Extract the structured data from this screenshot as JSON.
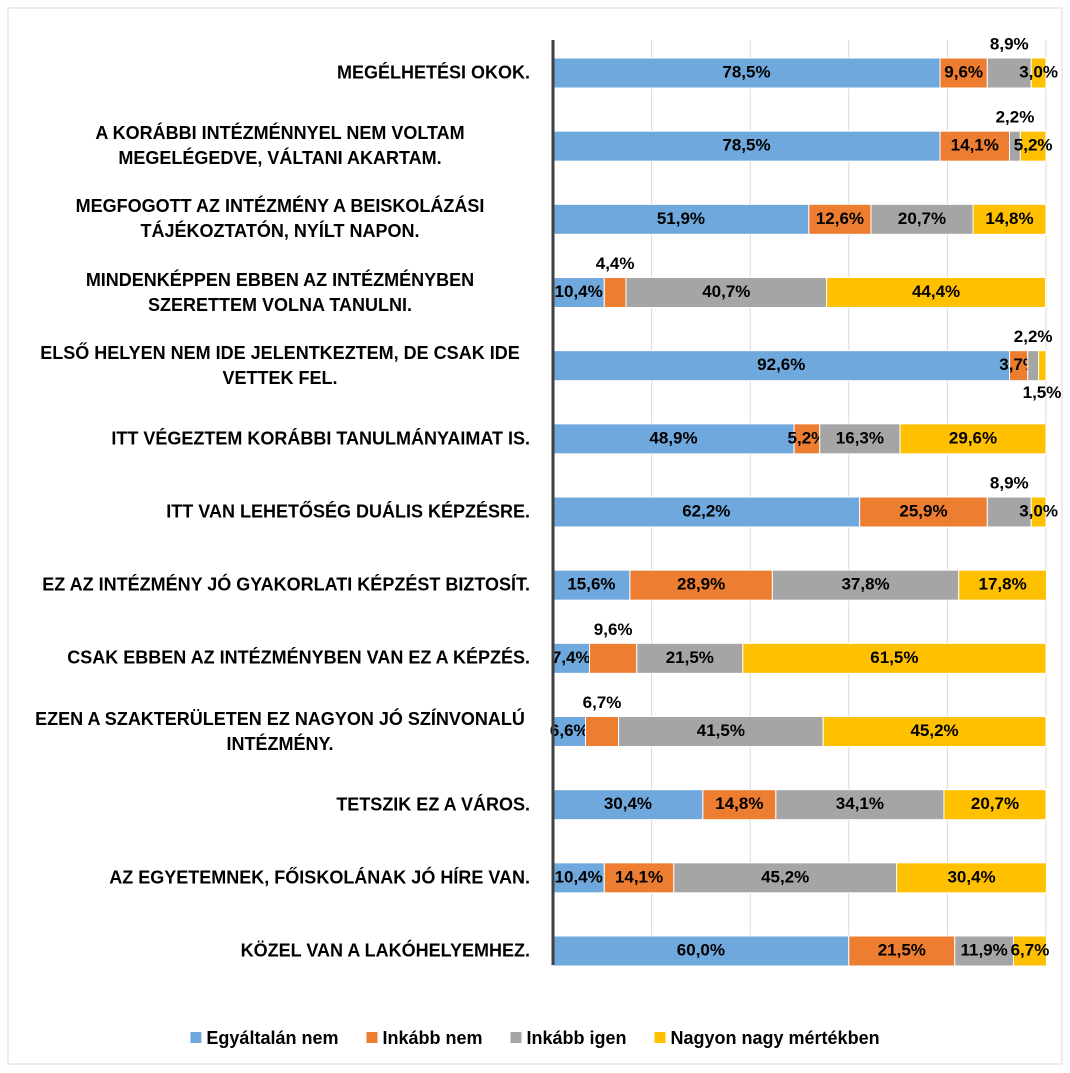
{
  "chart_data": {
    "type": "stacked-bar-horizontal",
    "categories": [
      "MEGÉLHETÉSI OKOK.",
      "A KORÁBBI INTÉZMÉNNYEL NEM VOLTAM MEGELÉGEDVE, VÁLTANI AKARTAM.",
      "MEGFOGOTT AZ INTÉZMÉNY A BEISKOLÁZÁSI TÁJÉKOZTATÓN, NYÍLT NAPON.",
      "MINDENKÉPPEN EBBEN AZ INTÉZMÉNYBEN SZERETTEM VOLNA TANULNI.",
      "ELSŐ HELYEN NEM IDE JELENTKEZTEM, DE CSAK IDE VETTEK FEL.",
      "ITT VÉGEZTEM KORÁBBI TANULMÁNYAIMAT IS.",
      "ITT VAN LEHETŐSÉG DUÁLIS KÉPZÉSRE.",
      "EZ AZ INTÉZMÉNY JÓ GYAKORLATI KÉPZÉST BIZTOSÍT.",
      "CSAK EBBEN AZ INTÉZMÉNYBEN VAN EZ A KÉPZÉS.",
      "EZEN A SZAKTERÜLETEN EZ NAGYON JÓ SZÍNVONALÚ INTÉZMÉNY.",
      "TETSZIK EZ A VÁROS.",
      "AZ EGYETEMNEK, FŐISKOLÁNAK JÓ HÍRE VAN.",
      "KÖZEL VAN A LAKÓHELYEMHEZ."
    ],
    "series": [
      {
        "name": "Egyáltalán nem",
        "color": "#6fa8dc",
        "values": [
          78.5,
          78.5,
          51.9,
          10.4,
          92.6,
          48.9,
          62.2,
          15.6,
          7.4,
          6.6,
          30.4,
          10.4,
          60.0
        ],
        "value_labels": [
          "78,5%",
          "78,5%",
          "51,9%",
          "10,4%",
          "92,6%",
          "48,9%",
          "62,2%",
          "15,6%",
          "7,4%",
          "6,6%",
          "30,4%",
          "10,4%",
          "60,0%"
        ]
      },
      {
        "name": "Inkább nem",
        "color": "#ed7d31",
        "values": [
          9.6,
          14.1,
          12.6,
          4.4,
          3.7,
          5.2,
          25.9,
          28.9,
          9.6,
          6.7,
          14.8,
          14.1,
          21.5
        ],
        "value_labels": [
          "9,6%",
          "14,1%",
          "12,6%",
          "4,4%",
          "3,7%",
          "5,2%",
          "25,9%",
          "28,9%",
          "9,6%",
          "6,7%",
          "14,8%",
          "14,1%",
          "21,5%"
        ]
      },
      {
        "name": "Inkább igen",
        "color": "#a5a5a5",
        "values": [
          8.9,
          2.2,
          20.7,
          40.7,
          2.2,
          16.3,
          8.9,
          37.8,
          21.5,
          41.5,
          34.1,
          45.2,
          11.9
        ],
        "value_labels": [
          "8,9%",
          "2,2%",
          "20,7%",
          "40,7%",
          "2,2%",
          "16,3%",
          "8,9%",
          "37,8%",
          "21,5%",
          "41,5%",
          "34,1%",
          "45,2%",
          "11,9%"
        ]
      },
      {
        "name": "Nagyon nagy mértékben",
        "color": "#ffc000",
        "values": [
          3.0,
          5.2,
          14.8,
          44.4,
          1.5,
          29.6,
          3.0,
          17.8,
          61.5,
          45.2,
          20.7,
          30.4,
          6.7
        ],
        "value_labels": [
          "3,0%",
          "5,2%",
          "14,8%",
          "44,4%",
          "1,5%",
          "29,6%",
          "3,0%",
          "17,8%",
          "61,5%",
          "45,2%",
          "20,7%",
          "30,4%",
          "6,7%"
        ]
      }
    ],
    "xlim": [
      0,
      100
    ],
    "xticks": [
      0,
      20,
      40,
      60,
      80,
      100
    ],
    "grid": true,
    "legend": "bottom"
  }
}
